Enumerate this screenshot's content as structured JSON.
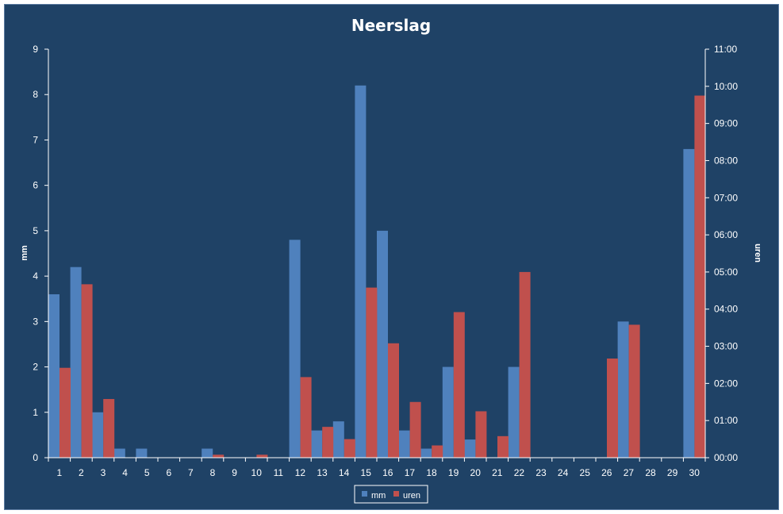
{
  "chart_data": {
    "type": "bar",
    "title": "Neerslag",
    "ylabel": "mm",
    "y2label": "uren",
    "categories": [
      "1",
      "2",
      "3",
      "4",
      "5",
      "6",
      "7",
      "8",
      "9",
      "10",
      "11",
      "12",
      "13",
      "14",
      "15",
      "16",
      "17",
      "18",
      "19",
      "20",
      "21",
      "22",
      "23",
      "24",
      "25",
      "26",
      "27",
      "28",
      "29",
      "30"
    ],
    "ylim": [
      0,
      9
    ],
    "yticks": [
      "0",
      "1",
      "2",
      "3",
      "4",
      "5",
      "6",
      "7",
      "8",
      "9"
    ],
    "y2lim_hours": [
      0,
      11
    ],
    "y2ticks": [
      "00:00",
      "01:00",
      "02:00",
      "03:00",
      "04:00",
      "05:00",
      "06:00",
      "07:00",
      "08:00",
      "09:00",
      "10:00",
      "11:00"
    ],
    "grid": false,
    "legend_position": "bottom",
    "series": [
      {
        "name": "mm",
        "axis": "left",
        "color": "#4f81bd",
        "values": [
          3.6,
          4.2,
          1.0,
          0.2,
          0.2,
          0,
          0,
          0.2,
          0,
          0,
          0,
          4.8,
          0.6,
          0.8,
          8.2,
          5.0,
          0.6,
          0.2,
          2.0,
          0.4,
          0,
          2.0,
          0,
          0,
          0,
          0,
          3.0,
          0,
          0,
          6.8
        ]
      },
      {
        "name": "uren",
        "axis": "right",
        "unit": "hours",
        "color": "#c0504d",
        "values": [
          2.42,
          4.67,
          1.58,
          0,
          0,
          0,
          0,
          0.08,
          0,
          0.08,
          0,
          2.17,
          0.83,
          0.5,
          4.58,
          3.08,
          1.5,
          0.33,
          3.92,
          1.25,
          0.58,
          5.0,
          0,
          0,
          0,
          2.67,
          3.58,
          0,
          0,
          9.75
        ]
      }
    ]
  }
}
